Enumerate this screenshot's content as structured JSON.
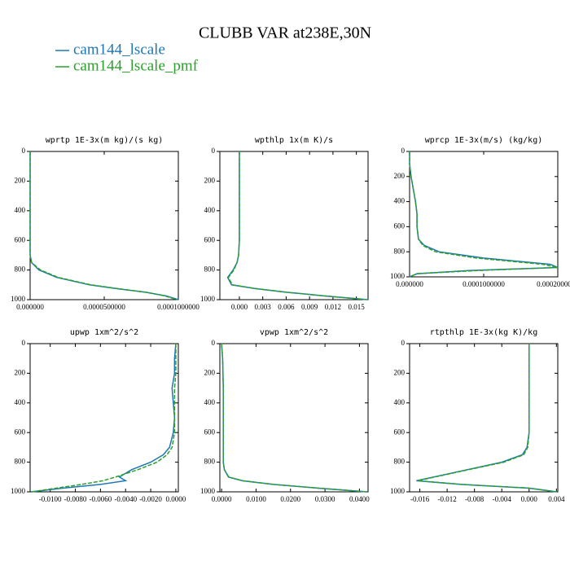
{
  "title": "CLUBB VAR at238E,30N",
  "chart_data": [
    {
      "type": "line",
      "title": "wprtp  1E-3x(m kg)/(s kg)",
      "y": [
        0,
        100,
        200,
        300,
        400,
        500,
        600,
        700,
        750,
        800,
        850,
        900,
        925,
        950,
        975,
        1000
      ],
      "series": [
        {
          "name": "cam144_lscale",
          "color": "#1f77b4",
          "values": [
            0,
            0,
            0,
            0,
            0,
            0,
            0,
            0,
            1e-06,
            6e-06,
            1.8e-05,
            4e-05,
            5.8e-05,
            7.8e-05,
            9.2e-05,
            0.0001
          ]
        },
        {
          "name": "cam144_lscale_pmf",
          "color": "#2ca02c",
          "values": [
            0,
            0,
            0,
            0,
            0,
            0,
            0,
            0,
            1e-06,
            7e-06,
            1.9e-05,
            4.1e-05,
            5.9e-05,
            7.8e-05,
            9.1e-05,
            9.9e-05
          ]
        }
      ],
      "xlim": [
        0,
        0.0001
      ],
      "xticks": [
        {
          "value": 0,
          "label": "0.000000"
        },
        {
          "value": 5e-05,
          "label": "0.0000500000"
        },
        {
          "value": 0.0001,
          "label": "0.0001000000"
        }
      ],
      "ylim": [
        0,
        1000
      ],
      "yticks": [
        0,
        200,
        400,
        600,
        800,
        1000
      ],
      "y_inverted": true
    },
    {
      "type": "line",
      "title": "wpthlp  1x(m K)/s",
      "y": [
        0,
        100,
        200,
        300,
        400,
        500,
        600,
        700,
        750,
        800,
        850,
        900,
        925,
        950,
        975,
        1000
      ],
      "series": [
        {
          "name": "cam144_lscale",
          "color": "#1f77b4",
          "values": [
            0,
            0,
            0,
            0,
            0,
            0,
            0,
            -0.0001,
            -0.0003,
            -0.0008,
            -0.0015,
            -0.001,
            0.002,
            0.006,
            0.011,
            0.0165
          ]
        },
        {
          "name": "cam144_lscale_pmf",
          "color": "#2ca02c",
          "values": [
            0,
            0,
            0,
            0,
            0,
            0,
            0,
            -0.0001,
            -0.0003,
            -0.0007,
            -0.0014,
            -0.0009,
            0.0021,
            0.0061,
            0.011,
            0.0163
          ]
        }
      ],
      "xlim": [
        -0.0025,
        0.0165
      ],
      "xticks": [
        {
          "value": 0,
          "label": "0.000"
        },
        0.003,
        0.006,
        0.009,
        0.012,
        0.015
      ],
      "ylim": [
        0,
        1000
      ],
      "yticks": [
        0,
        200,
        400,
        600,
        800,
        1000
      ],
      "y_inverted": true
    },
    {
      "type": "line",
      "title": "wprcp  1E-3x(m/s) (kg/kg)",
      "y": [
        0,
        100,
        200,
        300,
        400,
        500,
        600,
        700,
        750,
        800,
        850,
        900,
        925,
        950,
        975,
        1000
      ],
      "series": [
        {
          "name": "cam144_lscale",
          "color": "#1f77b4",
          "values": [
            0,
            0,
            2e-06,
            5e-06,
            8e-06,
            1e-05,
            1e-05,
            1.2e-05,
            2e-05,
            4e-05,
            0.0001,
            0.00019,
            0.0002,
            8e-05,
            1e-05,
            0
          ]
        },
        {
          "name": "cam144_lscale_pmf",
          "color": "#2ca02c",
          "values": [
            0,
            0,
            2e-06,
            5e-06,
            8e-06,
            1e-05,
            1e-05,
            1.2e-05,
            1.8e-05,
            3.5e-05,
            9e-05,
            0.00018,
            0.0002,
            9e-05,
            1e-05,
            0
          ]
        }
      ],
      "xlim": [
        0,
        0.0002
      ],
      "xticks": [
        {
          "value": 0,
          "label": "0.000000"
        },
        {
          "value": 0.0001,
          "label": "0.0001000000"
        },
        {
          "value": 0.0002,
          "label": "0.0002000000"
        }
      ],
      "ylim": [
        0,
        1000
      ],
      "yticks": [
        0,
        200,
        400,
        600,
        800,
        1000
      ],
      "y_inverted": true
    },
    {
      "type": "line",
      "title": "upwp  1xm^2/s^2",
      "y": [
        0,
        100,
        200,
        300,
        400,
        500,
        600,
        700,
        750,
        800,
        850,
        900,
        925,
        950,
        975,
        1000
      ],
      "series": [
        {
          "name": "cam144_lscale",
          "color": "#1f77b4",
          "values": [
            0,
            -0.0001,
            -0.0001,
            -0.0003,
            -0.0002,
            -0.0001,
            -0.0002,
            -0.0005,
            -0.001,
            -0.002,
            -0.0035,
            -0.0045,
            -0.004,
            -0.006,
            -0.009,
            -0.0115
          ]
        },
        {
          "name": "cam144_lscale_pmf",
          "color": "#2ca02c",
          "values": [
            0,
            0,
            0,
            -0.0001,
            -0.0001,
            -0.0001,
            -0.0001,
            -0.0003,
            -0.0007,
            -0.0015,
            -0.003,
            -0.0048,
            -0.0058,
            -0.0075,
            -0.0095,
            -0.0115
          ]
        }
      ],
      "xlim": [
        -0.0116,
        0.0002
      ],
      "xticks": [
        {
          "value": -0.01,
          "label": "-0.0100"
        },
        {
          "value": -0.008,
          "label": "-0.0080"
        },
        {
          "value": -0.006,
          "label": "-0.0060"
        },
        {
          "value": -0.004,
          "label": "-0.0040"
        },
        {
          "value": -0.002,
          "label": "-0.0020"
        },
        {
          "value": 0,
          "label": "0.0000"
        }
      ],
      "ylim": [
        0,
        1000
      ],
      "yticks": [
        0,
        200,
        400,
        600,
        800,
        1000
      ],
      "y_inverted": true
    },
    {
      "type": "line",
      "title": "vpwp  1xm^2/s^2",
      "y": [
        0,
        100,
        200,
        300,
        400,
        500,
        600,
        700,
        750,
        800,
        850,
        900,
        925,
        950,
        975,
        1000
      ],
      "series": [
        {
          "name": "cam144_lscale",
          "color": "#1f77b4",
          "values": [
            0,
            0.0003,
            0.0004,
            0.0005,
            0.0005,
            0.0005,
            0.0005,
            0.0005,
            0.0005,
            0.0005,
            0.0008,
            0.002,
            0.006,
            0.015,
            0.028,
            0.042
          ]
        },
        {
          "name": "cam144_lscale_pmf",
          "color": "#2ca02c",
          "values": [
            0,
            0.0003,
            0.0004,
            0.0005,
            0.0005,
            0.0005,
            0.0005,
            0.0005,
            0.0005,
            0.0005,
            0.0008,
            0.0021,
            0.0061,
            0.0152,
            0.0282,
            0.0422
          ]
        }
      ],
      "xlim": [
        -0.0005,
        0.0425
      ],
      "xticks": [
        {
          "value": 0,
          "label": "0.0000"
        },
        {
          "value": 0.01,
          "label": "0.0100"
        },
        {
          "value": 0.02,
          "label": "0.0200"
        },
        {
          "value": 0.03,
          "label": "0.0300"
        },
        {
          "value": 0.04,
          "label": "0.0400"
        }
      ],
      "ylim": [
        0,
        1000
      ],
      "yticks": [
        0,
        200,
        400,
        600,
        800,
        1000
      ],
      "y_inverted": true
    },
    {
      "type": "line",
      "title": "rtpthlp  1E-3x(kg K)/kg",
      "y": [
        0,
        100,
        200,
        300,
        400,
        500,
        600,
        700,
        750,
        800,
        850,
        900,
        925,
        950,
        975,
        1000
      ],
      "series": [
        {
          "name": "cam144_lscale",
          "color": "#1f77b4",
          "values": [
            0,
            0,
            0,
            0,
            0,
            0,
            0,
            -0.0003,
            -0.001,
            -0.004,
            -0.009,
            -0.014,
            -0.0165,
            -0.01,
            0,
            0.004
          ]
        },
        {
          "name": "cam144_lscale_pmf",
          "color": "#2ca02c",
          "values": [
            0,
            0,
            0,
            0,
            0,
            0,
            0,
            -0.0002,
            -0.0008,
            -0.0037,
            -0.0088,
            -0.0138,
            -0.0163,
            -0.0098,
            0,
            0.0041
          ]
        }
      ],
      "xlim": [
        -0.0175,
        0.0042
      ],
      "xticks": [
        -0.016,
        -0.012,
        -0.008,
        -0.004,
        {
          "value": 0,
          "label": "0.000"
        },
        0.004
      ],
      "ylim": [
        0,
        1000
      ],
      "yticks": [
        0,
        200,
        400,
        600,
        800,
        1000
      ],
      "y_inverted": true
    }
  ]
}
